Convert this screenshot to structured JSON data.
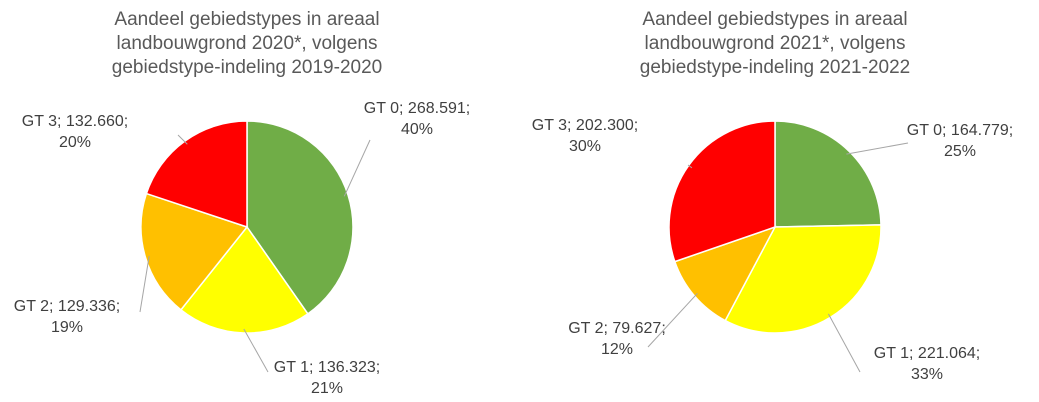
{
  "chart_data": [
    {
      "type": "pie",
      "title": "Aandeel gebiedstypes in areaal landbouwgrond 2020*, volgens gebiedstype-indeling 2019-2020",
      "values": [
        268591,
        136323,
        129336,
        132660
      ],
      "value_labels": [
        "GT 0; 268.591; 40%",
        "GT 1; 136.323; 21%",
        "GT 2; 129.336; 19%",
        "GT 3; 132.660; 20%"
      ],
      "colors": [
        "#70ad47",
        "#ffff00",
        "#ffc000",
        "#ff0000"
      ]
    },
    {
      "type": "pie",
      "title": "Aandeel gebiedstypes in areaal landbouwgrond 2021*, volgens gebiedstype-indeling 2021-2022",
      "values": [
        164779,
        221064,
        79627,
        202300
      ],
      "value_labels": [
        "GT 0; 164.779; 25%",
        "GT 1; 221.064; 33%",
        "GT 2; 79.627; 12%",
        "GT 3; 202.300; 30%"
      ],
      "colors": [
        "#70ad47",
        "#ffff00",
        "#ffc000",
        "#ff0000"
      ]
    }
  ]
}
